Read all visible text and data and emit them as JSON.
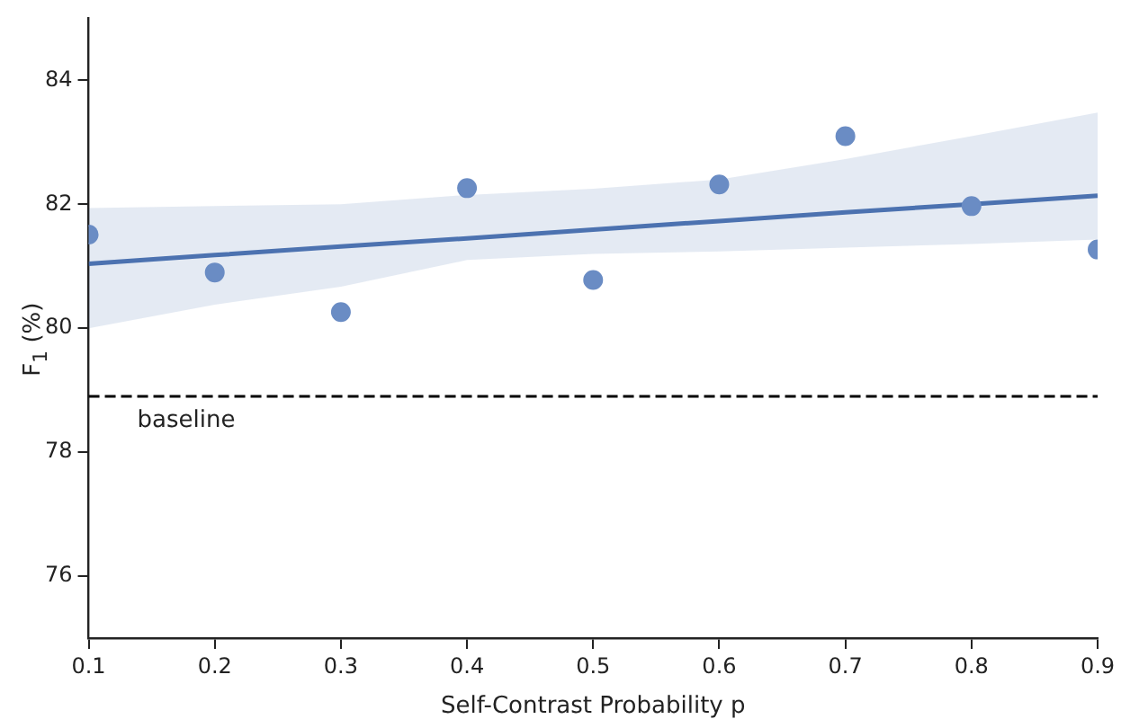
{
  "chart_data": {
    "type": "scatter",
    "xlabel": "Self-Contrast Probability p",
    "ylabel": "F$_{1}$ (%)",
    "xlim": [
      0.1,
      0.9
    ],
    "xticks": [
      0.1,
      0.2,
      0.3,
      0.4,
      0.5,
      0.6,
      0.7,
      0.8,
      0.9
    ],
    "ylim": [
      75,
      85
    ],
    "yticks": [
      76,
      78,
      80,
      82,
      84
    ],
    "grid": false,
    "legend": false,
    "marker": "circle",
    "series": [
      {
        "color": "#6a8cc4",
        "x": [
          0.1,
          0.2,
          0.3,
          0.4,
          0.5,
          0.6,
          0.7,
          0.8,
          0.9
        ],
        "values": [
          81.51,
          80.9,
          80.26,
          82.26,
          80.78,
          82.32,
          83.1,
          81.97,
          81.27
        ]
      },
      {
        "type": "line",
        "color": "#4c72b0",
        "line_style": "solid",
        "marker": "none",
        "x": [
          0.1,
          0.2,
          0.3,
          0.4,
          0.5,
          0.6,
          0.7,
          0.8,
          0.9
        ],
        "values": [
          81.04,
          81.18,
          81.32,
          81.45,
          81.59,
          81.73,
          81.87,
          82.0,
          82.14
        ],
        "lower": [
          80.0,
          80.38,
          80.67,
          81.1,
          81.2,
          81.24,
          81.3,
          81.36,
          81.43
        ],
        "upper": [
          81.94,
          81.97,
          82.0,
          82.15,
          82.25,
          82.4,
          82.73,
          83.1,
          83.48
        ]
      }
    ],
    "ref_lines": [
      {
        "axis": "y",
        "value": 78.9,
        "label": "baseline",
        "color": "#000000",
        "line_style": "dashed"
      }
    ]
  }
}
